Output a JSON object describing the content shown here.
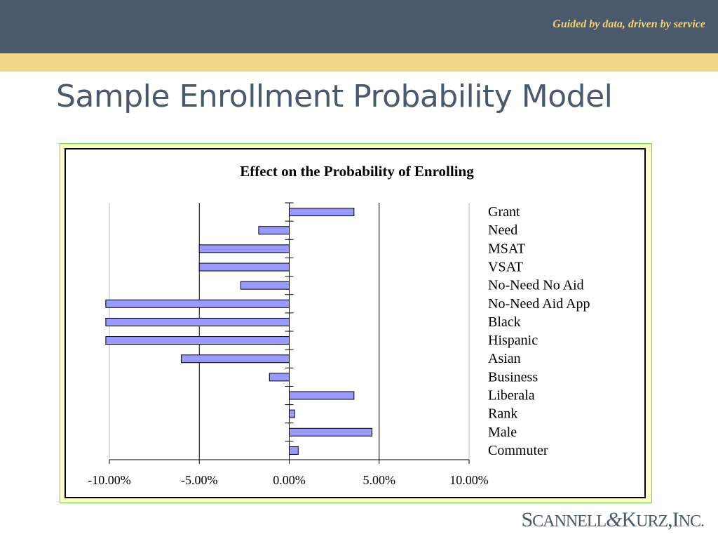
{
  "header": {
    "tagline": "Guided by data, driven by service",
    "colors": {
      "band": "#4a5a6c",
      "gold": "#f2d68a",
      "tagline": "#f0d27a"
    }
  },
  "slide": {
    "title": "Sample Enrollment Probability Model"
  },
  "chart_data": {
    "type": "bar",
    "orientation": "horizontal",
    "title": "Effect on the Probability of Enrolling",
    "categories": [
      "Grant",
      "Need",
      "MSAT",
      "VSAT",
      "No-Need No Aid",
      "No-Need Aid App",
      "Black",
      "Hispanic",
      "Asian",
      "Business",
      "Liberala",
      "Rank",
      "Male",
      "Commuter"
    ],
    "values": [
      3.6,
      -1.7,
      -5.0,
      -5.0,
      -2.7,
      -10.2,
      -10.2,
      -10.2,
      -6.0,
      -1.1,
      3.6,
      0.3,
      4.6,
      0.5
    ],
    "xlim": [
      -10,
      10
    ],
    "xticks": [
      -10,
      -5,
      0,
      5,
      10
    ],
    "xtick_labels": [
      "-10.00%",
      "-5.00%",
      "0.00%",
      "5.00%",
      "10.00%"
    ],
    "legend_position": "right",
    "bar_color": "#9999ff",
    "grid": true
  },
  "footer": {
    "logo": {
      "a": "S",
      "b": "CANNELL",
      "amp": "&",
      "c": "K",
      "d": "URZ",
      "e": ",",
      "f": "I",
      "g": "NC."
    }
  }
}
